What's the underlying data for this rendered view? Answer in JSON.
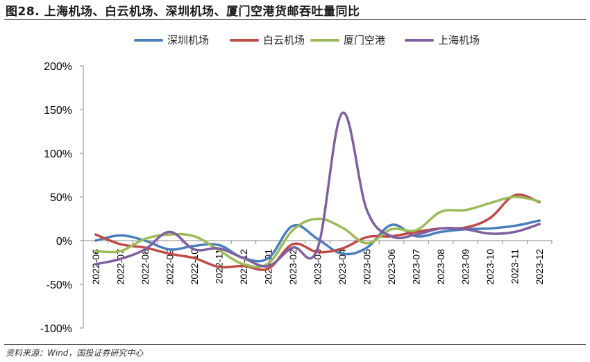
{
  "title": "图28. 上海机场、白云机场、深圳机场、厦门空港货邮吞吐量同比",
  "source": "资料来源：Wind，国投证券研究中心",
  "chart_data": {
    "type": "line",
    "title": "图28. 上海机场、白云机场、深圳机场、厦门空港货邮吞吐量同比",
    "categories": [
      "2022-06",
      "2022-07",
      "2022-08",
      "2022-09",
      "2022-10",
      "2022-11",
      "2022-12",
      "2023-01",
      "2023-02",
      "2023-03",
      "2023-04",
      "2023-05",
      "2023-06",
      "2023-07",
      "2023-08",
      "2023-09",
      "2023-10",
      "2023-11",
      "2023-12"
    ],
    "y_ticks": [
      "200%",
      "150%",
      "100%",
      "50%",
      "0%",
      "-50%",
      "-100%"
    ],
    "ylim": [
      -100,
      200
    ],
    "y_unit": "%",
    "legend_position": "top",
    "grid": false,
    "series": [
      {
        "name": "深圳机场",
        "color": "#4a7ebb",
        "values": [
          0,
          6,
          0,
          -10,
          -6,
          -5,
          -20,
          -20,
          17,
          2,
          -15,
          -8,
          18,
          5,
          10,
          13,
          14,
          17,
          23
        ]
      },
      {
        "name": "白云机场",
        "color": "#be4b48",
        "values": [
          7,
          -4,
          -8,
          -15,
          -20,
          -30,
          -29,
          -32,
          -4,
          -13,
          -9,
          4,
          5,
          10,
          14,
          15,
          26,
          52,
          44
        ]
      },
      {
        "name": "厦门空港",
        "color": "#9bbb59",
        "values": [
          -12,
          -12,
          2,
          7,
          5,
          -11,
          -27,
          -26,
          12,
          25,
          15,
          -3,
          13,
          12,
          33,
          35,
          43,
          50,
          45
        ]
      },
      {
        "name": "上海机场",
        "color": "#7f5fa0",
        "values": [
          -27,
          -21,
          -10,
          10,
          -10,
          -9,
          -20,
          -29,
          -8,
          -9,
          146,
          35,
          5,
          7,
          14,
          13,
          8,
          10,
          19
        ]
      }
    ]
  }
}
